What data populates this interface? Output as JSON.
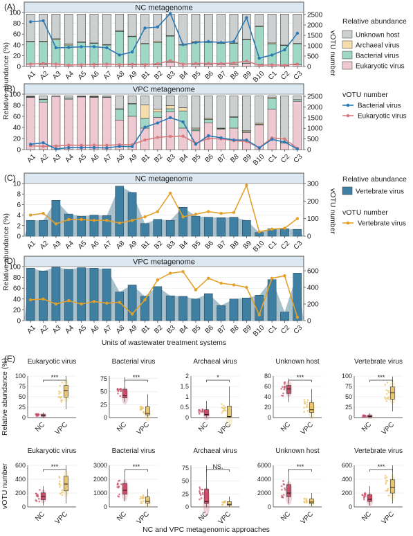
{
  "units": [
    "A1",
    "A2",
    "A3",
    "A4",
    "A5",
    "A6",
    "A7",
    "A8",
    "A9",
    "B1",
    "B2",
    "B3",
    "B4",
    "B5",
    "B6",
    "B7",
    "B8",
    "B9",
    "B10",
    "C1",
    "C2",
    "C3"
  ],
  "colors": {
    "unknown": "#ccd0d1",
    "archaeal": "#f4deae",
    "bacterial": "#9fd8c5",
    "eukaryotic": "#eec9d2",
    "vertebrate": "#3f7fa1",
    "vertebrate_area": "#a9c1cc",
    "bact_line": "#2a78b4",
    "euk_line": "#d77a7e",
    "vert_line": "#e3a12a",
    "strip": "#dce8f1",
    "nc_pts": "#c94e6a",
    "vpc_pts": "#e9c66b"
  },
  "panels": {
    "A": {
      "letter": "(A)",
      "title": "NC metagenome",
      "y2max": 2500,
      "y2ticks": [
        0,
        500,
        1000,
        1500,
        2000,
        2500
      ],
      "stack": {
        "eukaryotic": [
          5,
          4,
          5,
          3,
          4,
          3,
          4,
          3,
          3,
          5,
          3,
          8,
          5,
          4,
          4,
          4,
          4,
          6,
          4,
          3,
          2,
          3
        ],
        "bacterial": [
          42,
          43,
          46,
          38,
          42,
          41,
          37,
          64,
          54,
          38,
          43,
          50,
          36,
          42,
          42,
          40,
          40,
          45,
          72,
          40,
          38,
          40
        ],
        "archaeal": [
          1,
          1,
          2,
          2,
          1,
          1,
          1,
          1,
          1,
          1,
          2,
          1,
          1,
          2,
          2,
          1,
          1,
          1,
          1,
          2,
          1,
          1
        ]
      },
      "bacterial_votu": [
        2150,
        2200,
        900,
        920,
        950,
        950,
        900,
        550,
        700,
        1850,
        1900,
        2550,
        1050,
        1150,
        1200,
        1150,
        1200,
        2350,
        400,
        550,
        800,
        1600
      ],
      "eukaryotic_votu": [
        120,
        150,
        120,
        70,
        90,
        100,
        120,
        90,
        110,
        90,
        130,
        280,
        110,
        150,
        150,
        140,
        170,
        260,
        60,
        80,
        60,
        120
      ]
    },
    "B": {
      "letter": "(B)",
      "title": "VPC metagenome",
      "y2max": 2500,
      "y2ticks": [
        0,
        500,
        1000,
        1500,
        2000,
        2500
      ],
      "stack": {
        "eukaryotic": [
          97,
          88,
          99,
          94,
          98,
          97,
          97,
          55,
          62,
          40,
          60,
          70,
          40,
          35,
          50,
          38,
          40,
          32,
          46,
          75,
          12,
          90
        ],
        "bacterial": [
          1,
          5,
          0,
          2,
          1,
          1,
          1,
          20,
          23,
          18,
          10,
          6,
          32,
          3,
          6,
          1,
          20,
          1,
          1,
          20,
          2,
          3
        ],
        "archaeal": [
          1,
          1,
          0,
          0,
          0,
          1,
          0,
          1,
          1,
          25,
          5,
          6,
          6,
          2,
          2,
          1,
          1,
          2,
          2,
          2,
          0,
          0
        ]
      },
      "bacterial_votu": [
        250,
        320,
        30,
        90,
        90,
        90,
        80,
        150,
        140,
        1050,
        1250,
        1500,
        1300,
        250,
        650,
        550,
        450,
        450,
        80,
        480,
        350,
        30
      ],
      "eukaryotic_votu": [
        180,
        150,
        170,
        210,
        200,
        210,
        200,
        230,
        230,
        450,
        570,
        620,
        630,
        300,
        520,
        500,
        420,
        380,
        90,
        550,
        500,
        60
      ]
    },
    "C": {
      "letter": "(C)",
      "title": "NC metagenome",
      "ymax": 10,
      "yticks": [
        0,
        2,
        4,
        6,
        8,
        10
      ],
      "y2max": 300,
      "y2ticks": [
        0,
        100,
        200,
        300
      ],
      "vertebrate_ra": [
        3.0,
        3.0,
        6.8,
        4.2,
        3.8,
        4.0,
        3.9,
        9.5,
        8.3,
        2.4,
        3.2,
        3.0,
        5.5,
        3.8,
        3.6,
        3.5,
        3.6,
        3.0,
        0.7,
        1.4,
        1.4,
        1.3
      ],
      "vertebrate_votu": [
        120,
        130,
        70,
        95,
        95,
        90,
        90,
        75,
        90,
        110,
        140,
        245,
        110,
        125,
        140,
        130,
        135,
        290,
        25,
        40,
        45,
        100
      ]
    },
    "D": {
      "letter": "(D)",
      "title": "VPC metagenome",
      "ymax": 100,
      "yticks": [
        0,
        20,
        40,
        60,
        80,
        100
      ],
      "y2max": 650,
      "y2ticks": [
        0,
        200,
        400,
        600
      ],
      "vertebrate_ra": [
        97,
        92,
        99,
        95,
        98,
        97,
        96,
        53,
        66,
        45,
        63,
        46,
        45,
        40,
        50,
        28,
        40,
        42,
        47,
        76,
        16,
        88
      ],
      "vertebrate_votu": [
        250,
        260,
        200,
        240,
        200,
        230,
        210,
        220,
        80,
        250,
        490,
        570,
        590,
        370,
        510,
        450,
        430,
        400,
        70,
        510,
        540,
        40
      ]
    }
  },
  "legends": {
    "ra_title": "Relative abundance",
    "ra_items": [
      "Unknown host",
      "Archaeal virus",
      "Bacterial virus",
      "Eukaryotic virus"
    ],
    "votu_title": "vOTU number",
    "votu_items": [
      "Bacterial virus",
      "Eukaryotic virus"
    ],
    "c_ra_title": "Relative abundance",
    "c_ra_item": "Vertebrate virus",
    "c_votu_title": "vOTU number",
    "c_votu_item": "Vertebrate virus"
  },
  "axes": {
    "ab_ylabel": "Relative abundance (%)",
    "ab_y2label": "vOTU number",
    "cd_ylabel": "Relative abundance (%)",
    "cd_y2label": "vOTU number",
    "cd_xlabel": "Units of wastewater treatment systems",
    "e_ylabel_top": "Relative abundance (%)",
    "e_ylabel_bottom": "vOTU number",
    "e_xlabel": "NC and VPC metagenomic approaches",
    "e_letter": "(E)",
    "groups": [
      "NC",
      "VPC"
    ]
  },
  "panel_e": {
    "top": [
      {
        "title": "Eukaryotic virus",
        "ymax": 100,
        "ticks": [
          0,
          25,
          50,
          75,
          100
        ],
        "nc": [
          0,
          12,
          5
        ],
        "vpc": [
          20,
          100,
          65
        ],
        "sig": "***"
      },
      {
        "title": "Bacterial virus",
        "ymax": 80,
        "ticks": [
          0,
          25,
          50,
          75
        ],
        "nc": [
          30,
          78,
          42
        ],
        "vpc": [
          0,
          45,
          8
        ],
        "sig": "***"
      },
      {
        "title": "Archaeal virus",
        "ymax": 2.0,
        "ticks": [
          0,
          0.5,
          1.0,
          1.5,
          2.0
        ],
        "nc": [
          0,
          0.8,
          0.15
        ],
        "vpc": [
          0,
          1.5,
          0.05
        ],
        "sig": "*"
      },
      {
        "title": "Unknown host",
        "ymax": 80,
        "ticks": [
          0,
          20,
          40,
          60,
          80
        ],
        "nc": [
          30,
          75,
          55
        ],
        "vpc": [
          0,
          55,
          15
        ],
        "sig": "***"
      },
      {
        "title": "Vertebrate virus",
        "ymax": 100,
        "ticks": [
          0,
          25,
          50,
          75,
          100
        ],
        "nc": [
          0,
          10,
          3
        ],
        "vpc": [
          15,
          99,
          60
        ],
        "sig": "***"
      }
    ],
    "bottom": [
      {
        "title": "Eukaryotic virus",
        "ymax": 600,
        "ticks": [
          0,
          200,
          400,
          600
        ],
        "nc": [
          20,
          300,
          150
        ],
        "vpc": [
          50,
          650,
          330
        ],
        "sig": "***"
      },
      {
        "title": "Bacterial virus",
        "ymax": 3000,
        "ticks": [
          0,
          1000,
          2000,
          3000
        ],
        "nc": [
          400,
          2600,
          1200
        ],
        "vpc": [
          30,
          1300,
          400
        ],
        "sig": "***"
      },
      {
        "title": "Archaeal virus",
        "ymax": 80,
        "ticks": [
          0,
          25,
          50,
          75
        ],
        "nc": [
          0,
          80,
          10
        ],
        "vpc": [
          0,
          20,
          5
        ],
        "sig": "NS."
      },
      {
        "title": "Unknown host",
        "ymax": 6000,
        "ticks": [
          0,
          2000,
          4000,
          6000
        ],
        "nc": [
          500,
          5500,
          2000
        ],
        "vpc": [
          100,
          2000,
          700
        ],
        "sig": "***"
      },
      {
        "title": "Vertebrate virus",
        "ymax": 600,
        "ticks": [
          0,
          200,
          400,
          600
        ],
        "nc": [
          20,
          300,
          110
        ],
        "vpc": [
          50,
          600,
          280
        ],
        "sig": "***"
      }
    ]
  }
}
